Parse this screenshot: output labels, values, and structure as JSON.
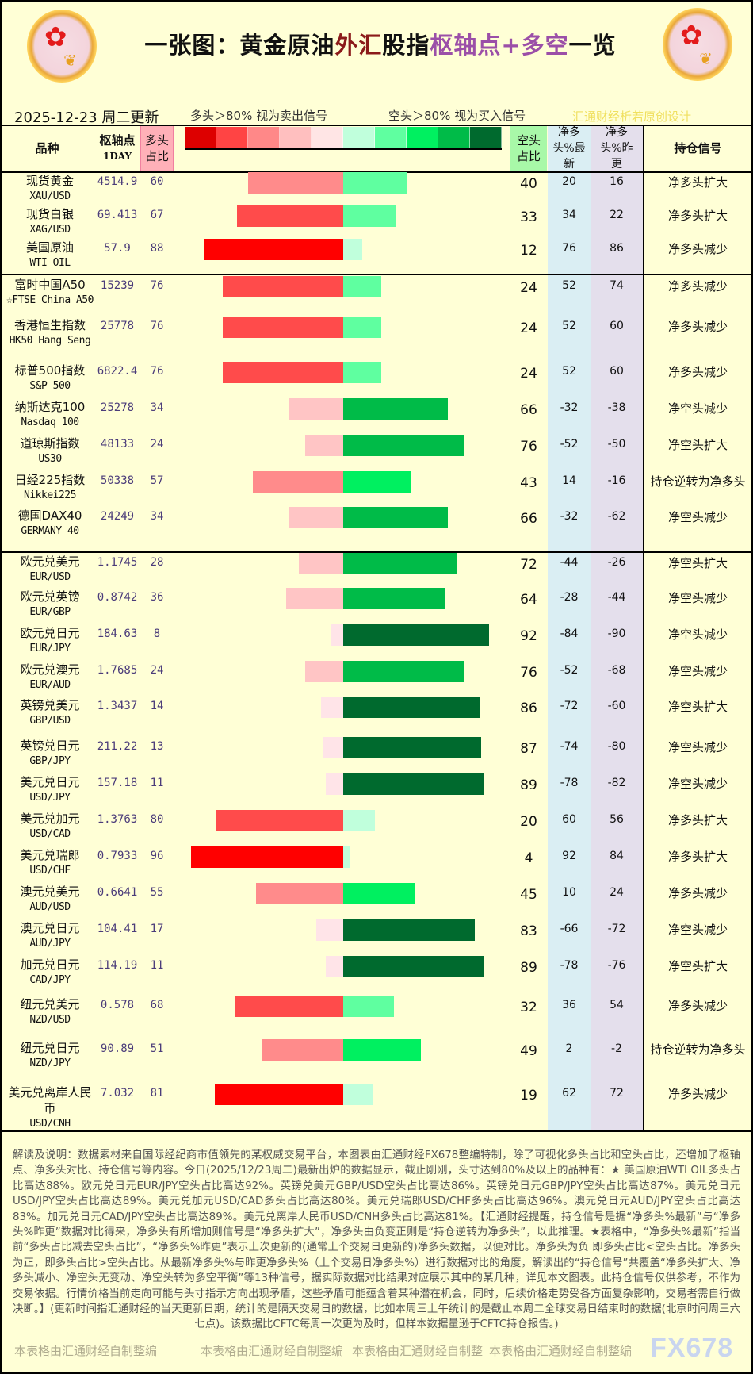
{
  "header": {
    "title_parts": [
      "一张图：黄金原油",
      "外汇",
      "股指",
      "枢轴点+多空",
      "一览"
    ],
    "date": "2025-12-23 周二更新",
    "legend_long": "多头＞80% 视为卖出信号",
    "legend_short": "空头＞80% 视为买入信号",
    "credit": "汇通财经析若原创设计",
    "legend_colors": [
      "#dd0000",
      "#ff4444",
      "#ff8888",
      "#ffbfbf",
      "#ffe5e5",
      "#c0ffdc",
      "#5fffa0",
      "#00f060",
      "#00bb48",
      "#006a2e"
    ]
  },
  "columns": {
    "name": "品种",
    "pivot": "枢轴点",
    "pivot_sub": "1DAY",
    "long": "多头占比",
    "short": "空头占比",
    "net_latest": "净多头%最新",
    "net_prev": "净多头%昨更",
    "signal": "持仓信号"
  },
  "rows": [
    {
      "name": "现货黄金",
      "code": "XAU/USD",
      "pivot": "4514.9",
      "long": 60,
      "short": 40,
      "net_latest": 20,
      "net_prev": 16,
      "signal": "净多头扩大"
    },
    {
      "name": "现货白银",
      "code": "XAG/USD",
      "pivot": "69.413",
      "long": 67,
      "short": 33,
      "net_latest": 34,
      "net_prev": 22,
      "signal": "净多头扩大"
    },
    {
      "name": "美国原油",
      "code": "WTI OIL",
      "pivot": "57.9",
      "long": 88,
      "short": 12,
      "net_latest": 76,
      "net_prev": 86,
      "signal": "净多头减少"
    },
    {
      "name": "富时中国A50",
      "code": "☆FTSE China A50",
      "pivot": "15239",
      "long": 76,
      "short": 24,
      "net_latest": 52,
      "net_prev": 74,
      "signal": "净多头减少"
    },
    {
      "name": "香港恒生指数",
      "code": "HK50 Hang Seng",
      "pivot": "25778",
      "long": 76,
      "short": 24,
      "net_latest": 52,
      "net_prev": 60,
      "signal": "净多头减少"
    },
    {
      "name": "标普500指数",
      "code": "S&P 500",
      "pivot": "6822.4",
      "long": 76,
      "short": 24,
      "net_latest": 52,
      "net_prev": 60,
      "signal": "净多头减少"
    },
    {
      "name": "纳斯达克100",
      "code": "Nasdaq 100",
      "pivot": "25278",
      "long": 34,
      "short": 66,
      "net_latest": -32,
      "net_prev": -38,
      "signal": "净空头减少"
    },
    {
      "name": "道琼斯指数",
      "code": "US30",
      "pivot": "48133",
      "long": 24,
      "short": 76,
      "net_latest": -52,
      "net_prev": -50,
      "signal": "净空头扩大"
    },
    {
      "name": "日经225指数",
      "code": "Nikkei225",
      "pivot": "50338",
      "long": 57,
      "short": 43,
      "net_latest": 14,
      "net_prev": -16,
      "signal": "持仓逆转为净多头"
    },
    {
      "name": "德国DAX40",
      "code": "GERMANY 40",
      "pivot": "24249",
      "long": 34,
      "short": 66,
      "net_latest": -32,
      "net_prev": -62,
      "signal": "净空头减少"
    },
    {
      "name": "欧元兑美元",
      "code": "EUR/USD",
      "pivot": "1.1745",
      "long": 28,
      "short": 72,
      "net_latest": -44,
      "net_prev": -26,
      "signal": "净空头扩大"
    },
    {
      "name": "欧元兑英镑",
      "code": "EUR/GBP",
      "pivot": "0.8742",
      "long": 36,
      "short": 64,
      "net_latest": -28,
      "net_prev": -44,
      "signal": "净空头减少"
    },
    {
      "name": "欧元兑日元",
      "code": "EUR/JPY",
      "pivot": "184.63",
      "long": 8,
      "short": 92,
      "net_latest": -84,
      "net_prev": -90,
      "signal": "净空头减少"
    },
    {
      "name": "欧元兑澳元",
      "code": "EUR/AUD",
      "pivot": "1.7685",
      "long": 24,
      "short": 76,
      "net_latest": -52,
      "net_prev": -68,
      "signal": "净空头减少"
    },
    {
      "name": "英镑兑美元",
      "code": "GBP/USD",
      "pivot": "1.3437",
      "long": 14,
      "short": 86,
      "net_latest": -72,
      "net_prev": -60,
      "signal": "净空头扩大"
    },
    {
      "name": "英镑兑日元",
      "code": "GBP/JPY",
      "pivot": "211.22",
      "long": 13,
      "short": 87,
      "net_latest": -74,
      "net_prev": -80,
      "signal": "净空头减少"
    },
    {
      "name": "美元兑日元",
      "code": "USD/JPY",
      "pivot": "157.18",
      "long": 11,
      "short": 89,
      "net_latest": -78,
      "net_prev": -82,
      "signal": "净空头减少"
    },
    {
      "name": "美元兑加元",
      "code": "USD/CAD",
      "pivot": "1.3763",
      "long": 80,
      "short": 20,
      "net_latest": 60,
      "net_prev": 56,
      "signal": "净多头扩大"
    },
    {
      "name": "美元兑瑞郎",
      "code": "USD/CHF",
      "pivot": "0.7933",
      "long": 96,
      "short": 4,
      "net_latest": 92,
      "net_prev": 84,
      "signal": "净多头扩大"
    },
    {
      "name": "澳元兑美元",
      "code": "AUD/USD",
      "pivot": "0.6641",
      "long": 55,
      "short": 45,
      "net_latest": 10,
      "net_prev": 24,
      "signal": "净多头减少"
    },
    {
      "name": "澳元兑日元",
      "code": "AUD/JPY",
      "pivot": "104.41",
      "long": 17,
      "short": 83,
      "net_latest": -66,
      "net_prev": -72,
      "signal": "净空头减少"
    },
    {
      "name": "加元兑日元",
      "code": "CAD/JPY",
      "pivot": "114.19",
      "long": 11,
      "short": 89,
      "net_latest": -78,
      "net_prev": -76,
      "signal": "净空头扩大"
    },
    {
      "name": "纽元兑美元",
      "code": "NZD/USD",
      "pivot": "0.578",
      "long": 68,
      "short": 32,
      "net_latest": 36,
      "net_prev": 54,
      "signal": "净多头减少"
    },
    {
      "name": "纽元兑日元",
      "code": "NZD/JPY",
      "pivot": "90.89",
      "long": 51,
      "short": 49,
      "net_latest": 2,
      "net_prev": -2,
      "signal": "持仓逆转为净多头"
    },
    {
      "name": "美元兑离岸人民币",
      "code": "USD/CNH",
      "pivot": "7.032",
      "long": 81,
      "short": 19,
      "net_latest": 62,
      "net_prev": 72,
      "signal": "净多头减少"
    }
  ],
  "footer": {
    "text": "解读及说明：数据素材来自国际经纪商市值领先的某权威交易平台，本图表由汇通财经FX678整编特制，除了可视化多头占比和空头占比，还增加了枢轴点、净多头对比、持仓信号等内容。今日(2025/12/23周二)最新出炉的数据显示，截止刚刚，头寸达到80%及以上的品种有：★ 美国原油WTI OIL多头占比高达88%。欧元兑日元EUR/JPY空头占比高达92%。英镑兑美元GBP/USD空头占比高达86%。英镑兑日元GBP/JPY空头占比高达87%。美元兑日元USD/JPY空头占比高达89%。美元兑加元USD/CAD多头占比高达80%。美元兑瑞郎USD/CHF多头占比高达96%。澳元兑日元AUD/JPY空头占比高达83%。加元兑日元CAD/JPY空头占比高达89%。美元兑离岸人民币USD/CNH多头占比高达81%。【汇通财经提醒，持仓信号是据“净多头%最新”与“净多头%昨更”数据对比得来，净多头有所增加则信号是“净多头扩大”，净多头由负变正则是“持仓逆转为净多头”，以此推理。★表格中，“净多头%最新”指当前“多头占比减去空头占比”，“净多头%昨更”表示上次更新的(通常上个交易日更新的)净多头数据，以便对比。净多头为负 即多头占比<空头占比。净多头为正，即多头占比>空头占比。从最新净多头%与昨更净多头%（上个交易日净多头%）进行数据对比的角度，解读出的“持仓信号”共覆盖“净多头扩大、净多头减小、净空头无变动、净空头转为多空平衡”等13种信号，据实际数据对比结果对应展示其中的某几种，详见本文图表。此持仓信号仅供参考，不作为交易依据。行情价格当前走向可能与头寸指示方向出现矛盾，这些矛盾可能蕴含着某种潜在机会，同时，后续价格走势受各方面复杂影响，交易者需自行做决断。】(更新时间指汇通财经的当天更新日期，统计的是隔天交易日的数据，比如本周三上午统计的是截止本周二全球交易日结束时的数据(北京时间周三六七点)。该数据比CFTC每周一次更为及时，但样本数据量逊于CFTC持仓报告。)",
    "watermarks": [
      "本表格由汇通财经自制整编",
      "本表格由汇通财经自制整编",
      "本表格由汇通财经自制整",
      "本表格由汇通财经自制整编"
    ],
    "brand": "FX678"
  }
}
